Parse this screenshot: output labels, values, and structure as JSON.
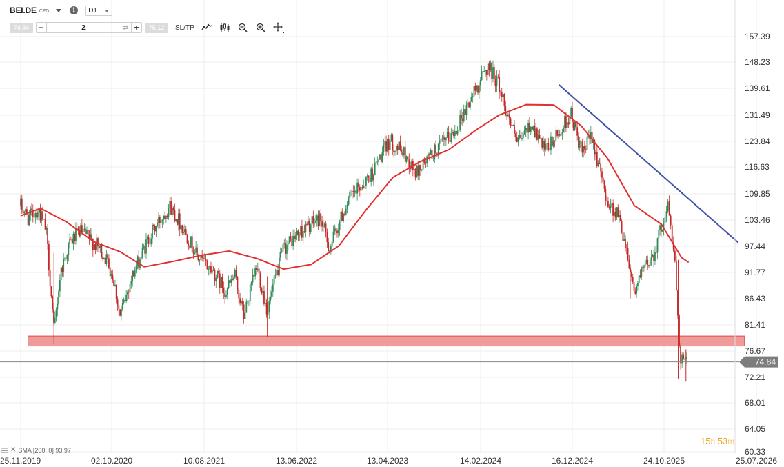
{
  "toolbar": {
    "symbol": "BEI.DE",
    "badge": "CFD",
    "info": "i",
    "timeframe": "D1",
    "bid": "74.84",
    "quantity": "2",
    "ask": "75.12",
    "minus": "−",
    "plus": "+",
    "sltp": "SL/TP",
    "icons": [
      "line-chart-icon",
      "candlestick-icon",
      "zoom-out-icon",
      "zoom-in-icon",
      "crosshair-icon"
    ]
  },
  "countdown": {
    "hours": "15",
    "h_unit": "h",
    "minutes": "53",
    "m_unit": "m"
  },
  "sma_legend": {
    "label": "SMA [200, 0] 93.97"
  },
  "colors": {
    "up": "#2e8b57",
    "down": "#c62828",
    "sma": "#e03030",
    "trendline": "#3f4fa8",
    "zone_fill": "#f19a9a",
    "zone_stroke": "#d94a4a",
    "price_line": "#888888",
    "price_label_bg": "#7d7d7d",
    "grid": "#ececec",
    "countdown": "#e3a11b"
  },
  "chart_data": {
    "type": "candlestick",
    "symbol": "BEI.DE",
    "timeframe": "D1",
    "ylim": [
      60.33,
      160
    ],
    "y_ticks": [
      "157.39",
      "148.23",
      "139.61",
      "131.49",
      "123.84",
      "116.63",
      "109.85",
      "103.46",
      "97.44",
      "91.77",
      "86.43",
      "81.41",
      "76.67",
      "72.21",
      "68.01",
      "64.05",
      "60.33"
    ],
    "y_tick_values": [
      157.39,
      148.23,
      139.61,
      131.49,
      123.84,
      116.63,
      109.85,
      103.46,
      97.44,
      91.77,
      86.43,
      81.41,
      76.67,
      72.21,
      68.01,
      64.05,
      60.33
    ],
    "x_ticks": [
      "25.11.2019",
      "02.10.2020",
      "10.08.2021",
      "13.06.2022",
      "13.04.2023",
      "14.02.2024",
      "16.12.2024",
      "24.10.2025",
      "25.07.2026"
    ],
    "current_price": {
      "value": 74.84,
      "label": "74.84"
    },
    "price_path": [
      [
        "2019-11-25",
        107
      ],
      [
        "2019-12-20",
        104
      ],
      [
        "2020-01-25",
        106
      ],
      [
        "2020-02-20",
        101
      ],
      [
        "2020-03-18",
        80
      ],
      [
        "2020-04-10",
        92
      ],
      [
        "2020-05-10",
        98
      ],
      [
        "2020-06-15",
        101
      ],
      [
        "2020-07-20",
        99
      ],
      [
        "2020-08-20",
        97
      ],
      [
        "2020-09-20",
        94
      ],
      [
        "2020-10-10",
        90
      ],
      [
        "2020-10-30",
        83
      ],
      [
        "2020-12-10",
        91
      ],
      [
        "2021-02-10",
        100
      ],
      [
        "2021-04-15",
        107
      ],
      [
        "2021-05-20",
        103
      ],
      [
        "2021-06-20",
        99
      ],
      [
        "2021-07-20",
        95
      ],
      [
        "2021-09-10",
        92
      ],
      [
        "2021-10-20",
        88
      ],
      [
        "2021-11-20",
        91
      ],
      [
        "2021-12-20",
        83
      ],
      [
        "2022-02-01",
        93
      ],
      [
        "2022-03-08",
        84
      ],
      [
        "2022-05-01",
        97
      ],
      [
        "2022-07-01",
        101
      ],
      [
        "2022-09-01",
        104
      ],
      [
        "2022-10-01",
        97
      ],
      [
        "2022-12-01",
        108
      ],
      [
        "2023-02-20",
        115
      ],
      [
        "2023-04-20",
        124
      ],
      [
        "2023-06-01",
        121
      ],
      [
        "2023-07-15",
        115
      ],
      [
        "2023-09-15",
        121
      ],
      [
        "2023-11-15",
        126
      ],
      [
        "2024-01-10",
        136
      ],
      [
        "2024-02-01",
        140
      ],
      [
        "2024-03-10",
        147
      ],
      [
        "2024-04-10",
        142
      ],
      [
        "2024-05-10",
        133
      ],
      [
        "2024-06-15",
        123
      ],
      [
        "2024-08-01",
        129
      ],
      [
        "2024-09-15",
        121
      ],
      [
        "2024-11-01",
        126
      ],
      [
        "2024-12-10",
        132
      ],
      [
        "2025-01-20",
        120
      ],
      [
        "2025-02-20",
        126
      ],
      [
        "2025-03-20",
        115
      ],
      [
        "2025-04-20",
        107
      ],
      [
        "2025-05-20",
        105
      ],
      [
        "2025-06-15",
        98
      ],
      [
        "2025-07-15",
        88
      ],
      [
        "2025-08-20",
        93
      ],
      [
        "2025-09-20",
        96
      ],
      [
        "2025-10-20",
        103
      ],
      [
        "2025-11-05",
        107
      ],
      [
        "2025-11-25",
        94
      ],
      [
        "2025-12-10",
        76
      ],
      [
        "2026-01-01",
        74.84
      ]
    ],
    "indicators": [
      {
        "name": "SMA [200, 0]",
        "value": 93.97,
        "points": [
          [
            "2019-11-25",
            104.5
          ],
          [
            "2020-02-01",
            106.3
          ],
          [
            "2020-05-01",
            103
          ],
          [
            "2020-08-01",
            98.5
          ],
          [
            "2020-11-01",
            96.2
          ],
          [
            "2021-01-20",
            93
          ],
          [
            "2021-05-01",
            94.2
          ],
          [
            "2021-08-01",
            95.5
          ],
          [
            "2021-11-01",
            96.4
          ],
          [
            "2022-02-01",
            94.8
          ],
          [
            "2022-05-01",
            92.5
          ],
          [
            "2022-08-01",
            93.5
          ],
          [
            "2022-11-01",
            97.5
          ],
          [
            "2023-02-01",
            106
          ],
          [
            "2023-05-01",
            114
          ],
          [
            "2023-08-01",
            118.2
          ],
          [
            "2023-11-01",
            121.5
          ],
          [
            "2024-02-01",
            127.3
          ],
          [
            "2024-04-15",
            131.5
          ],
          [
            "2024-07-15",
            134.7
          ],
          [
            "2024-10-15",
            134.6
          ],
          [
            "2025-01-15",
            128.4
          ],
          [
            "2025-04-15",
            119
          ],
          [
            "2025-07-15",
            107
          ],
          [
            "2025-10-15",
            102.5
          ],
          [
            "2025-12-15",
            95
          ],
          [
            "2026-01-05",
            93.97
          ]
        ]
      }
    ],
    "trendline": {
      "from": [
        "2024-11-01",
        140.8
      ],
      "to": [
        "2026-06-01",
        98.3
      ]
    },
    "support_zone": {
      "from": "2019-12-20",
      "to": "2026-06-20",
      "low": 77.6,
      "high": 79.4
    }
  }
}
